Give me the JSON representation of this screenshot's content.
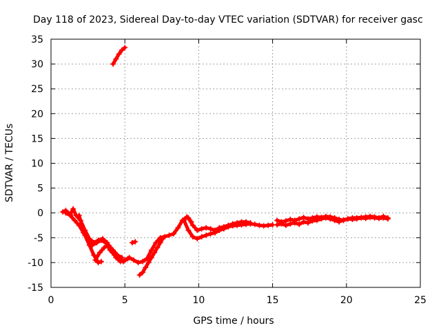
{
  "chart_data": {
    "type": "scatter",
    "title": "Day 118 of 2023, Sidereal Day-to-day VTEC variation (SDTVAR) for receiver gasc",
    "xlabel": "GPS time / hours",
    "ylabel": "SDTVAR / TECUs",
    "xlim": [
      0,
      25
    ],
    "ylim": [
      -15,
      35
    ],
    "xticks": [
      0,
      5,
      10,
      15,
      20,
      25
    ],
    "yticks": [
      -15,
      -10,
      -5,
      0,
      5,
      10,
      15,
      20,
      25,
      30,
      35
    ],
    "grid": true,
    "marker": "plus",
    "series": [
      {
        "name": "SDTVAR",
        "color": "#ff0000",
        "segments": [
          {
            "x": [
              0.8,
              1.0,
              1.3,
              1.5,
              1.7,
              2.0,
              2.3,
              2.6,
              2.9,
              3.2,
              3.5,
              3.8,
              4.1,
              4.4,
              4.7,
              5.0,
              5.3,
              5.6,
              5.9,
              6.2,
              6.5,
              6.8,
              7.1,
              7.4,
              7.7,
              8.0,
              8.3,
              8.6,
              8.9,
              9.2,
              9.5
            ],
            "y": [
              0.2,
              0.5,
              -0.3,
              0.8,
              -0.5,
              -1.5,
              -3.5,
              -5.2,
              -6.0,
              -5.5,
              -5.2,
              -6.0,
              -7.5,
              -9.0,
              -9.8,
              -9.5,
              -9.0,
              -9.5,
              -10.0,
              -9.8,
              -9.2,
              -7.5,
              -6.0,
              -5.0,
              -4.8,
              -4.5,
              -4.2,
              -3.0,
              -1.5,
              -0.8,
              -1.8
            ]
          },
          {
            "x": [
              1.0,
              1.3,
              1.6,
              1.9,
              2.2,
              2.5,
              2.8,
              3.1,
              3.4,
              3.7,
              4.0,
              4.3,
              4.6,
              4.9,
              5.2
            ],
            "y": [
              0.0,
              -0.5,
              -1.5,
              -2.5,
              -4.0,
              -5.5,
              -6.5,
              -6.0,
              -5.5,
              -6.0,
              -7.5,
              -8.5,
              -9.5,
              -9.8,
              -9.2
            ]
          },
          {
            "x": [
              1.9,
              2.1,
              2.3,
              2.6,
              2.9,
              3.2,
              3.4
            ],
            "y": [
              -0.5,
              -2.5,
              -4.5,
              -6.5,
              -8.5,
              -10.0,
              -9.8
            ]
          },
          {
            "x": [
              3.0,
              3.3,
              3.6,
              3.9,
              4.2,
              4.5,
              4.8
            ],
            "y": [
              -9.5,
              -8.0,
              -7.0,
              -6.5,
              -7.5,
              -8.5,
              -9.0
            ]
          },
          {
            "x": [
              5.5,
              5.7
            ],
            "y": [
              -6.0,
              -5.8
            ]
          },
          {
            "x": [
              6.0,
              6.2,
              6.4,
              6.6,
              6.8,
              7.0,
              7.2,
              7.4,
              7.6
            ],
            "y": [
              -12.5,
              -12.0,
              -11.0,
              -10.0,
              -9.0,
              -8.0,
              -7.0,
              -6.0,
              -5.0
            ]
          },
          {
            "x": [
              4.2,
              4.4,
              4.6,
              4.8,
              5.0
            ],
            "y": [
              30.0,
              31.0,
              32.0,
              32.8,
              33.3
            ]
          },
          {
            "x": [
              9.0,
              9.3,
              9.6,
              9.9,
              10.2,
              10.5,
              10.8,
              11.1,
              11.4,
              11.7,
              12.0,
              12.3,
              12.6,
              12.9,
              13.2,
              13.5,
              13.8,
              14.1,
              14.4,
              14.7,
              15.0
            ],
            "y": [
              -1.5,
              -3.5,
              -4.8,
              -5.2,
              -4.8,
              -4.5,
              -4.2,
              -4.0,
              -3.5,
              -3.2,
              -2.8,
              -2.6,
              -2.5,
              -2.4,
              -2.3,
              -2.2,
              -2.3,
              -2.5,
              -2.6,
              -2.5,
              -2.4
            ]
          },
          {
            "x": [
              9.3,
              9.6,
              9.9,
              10.2,
              10.5,
              10.8,
              11.1,
              11.4,
              11.7,
              12.0,
              12.3,
              12.6,
              12.9,
              13.2,
              13.5
            ],
            "y": [
              -1.0,
              -2.5,
              -3.5,
              -3.2,
              -3.0,
              -3.2,
              -3.5,
              -3.0,
              -2.8,
              -2.5,
              -2.2,
              -2.0,
              -1.8,
              -1.8,
              -2.0
            ]
          },
          {
            "x": [
              15.3,
              15.6,
              15.9,
              16.2,
              16.5,
              16.8,
              17.1,
              17.4,
              17.7,
              18.0,
              18.3,
              18.6,
              18.9,
              19.2,
              19.5,
              19.8,
              20.1,
              20.4,
              20.7,
              21.0,
              21.3,
              21.6,
              21.9,
              22.2,
              22.5,
              22.8
            ],
            "y": [
              -1.5,
              -1.8,
              -1.6,
              -1.3,
              -1.5,
              -1.2,
              -0.9,
              -1.2,
              -1.0,
              -0.8,
              -0.9,
              -0.7,
              -0.8,
              -1.0,
              -1.3,
              -1.5,
              -1.2,
              -1.0,
              -1.0,
              -0.9,
              -0.8,
              -0.7,
              -0.8,
              -1.0,
              -0.7,
              -1.0
            ]
          },
          {
            "x": [
              15.3,
              15.6,
              15.9,
              16.2,
              16.5,
              16.8,
              17.1,
              17.4,
              17.7,
              18.0,
              18.3,
              18.6,
              18.9,
              19.2,
              19.5,
              19.8,
              20.1,
              20.4,
              20.7,
              21.0,
              21.3,
              21.6,
              21.9,
              22.2,
              22.5,
              22.8
            ],
            "y": [
              -2.4,
              -2.2,
              -2.5,
              -2.2,
              -2.0,
              -2.3,
              -1.8,
              -2.0,
              -1.6,
              -1.5,
              -1.2,
              -1.0,
              -1.2,
              -1.5,
              -1.8,
              -1.4,
              -1.2,
              -1.3,
              -1.2,
              -1.0,
              -1.1,
              -0.9,
              -1.0,
              -1.1,
              -1.0,
              -1.2
            ]
          }
        ]
      }
    ]
  }
}
